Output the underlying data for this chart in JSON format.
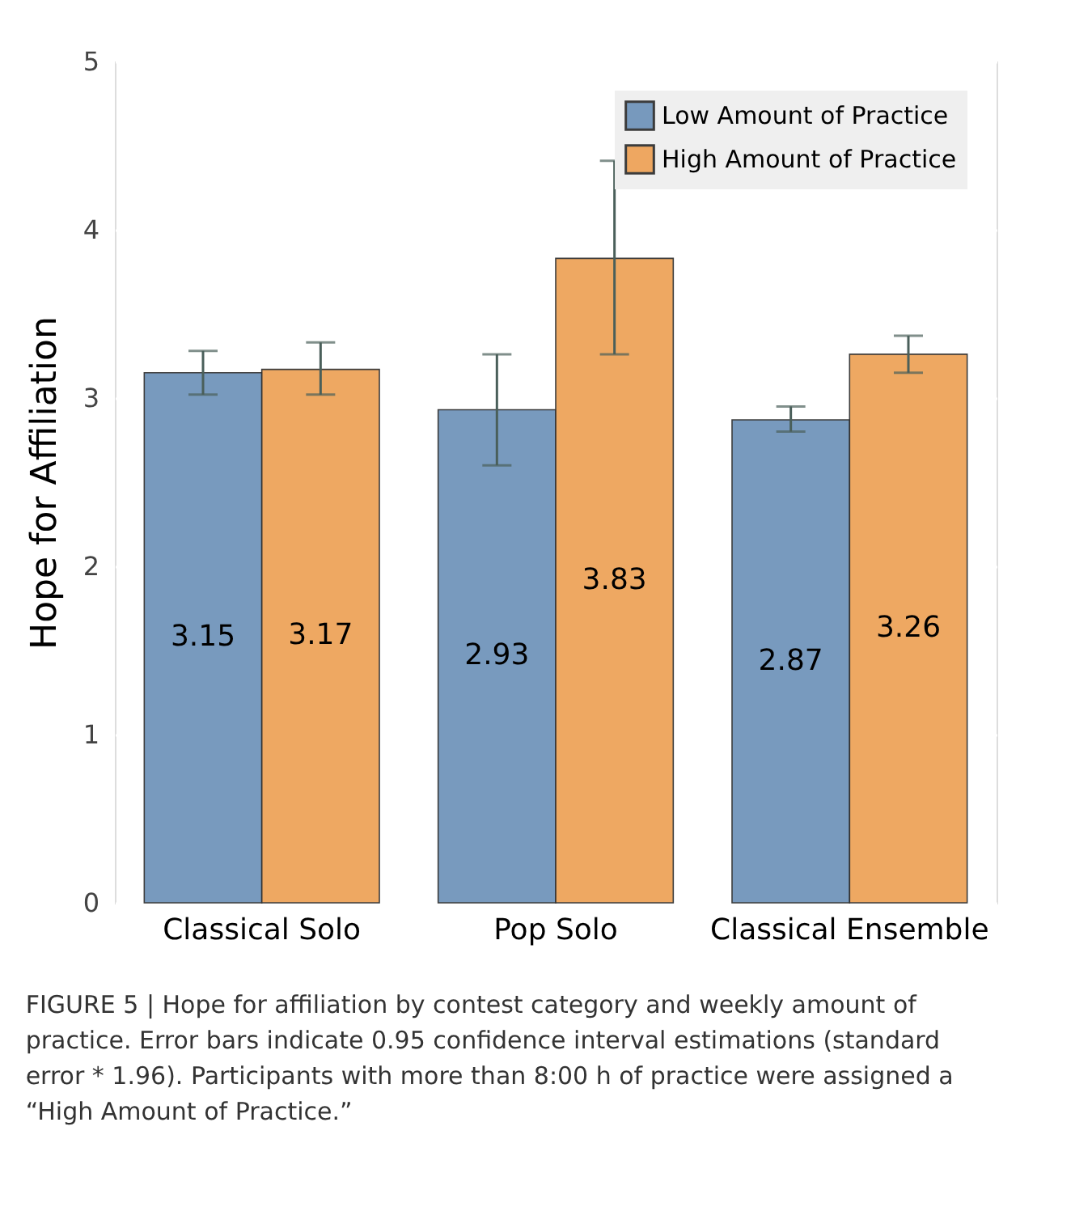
{
  "chart_data": {
    "type": "bar",
    "ylabel": "Hope for Affiliation",
    "categories": [
      "Classical Solo",
      "Pop Solo",
      "Classical Ensemble"
    ],
    "series": [
      {
        "name": "Low Amount of Practice",
        "color": "#7195bb",
        "values": [
          3.15,
          2.93,
          2.87
        ],
        "errors": [
          [
            3.02,
            3.28
          ],
          [
            2.6,
            3.26
          ],
          [
            2.8,
            2.95
          ]
        ]
      },
      {
        "name": "High Amount of Practice",
        "color": "#eea45a",
        "values": [
          3.17,
          3.83,
          3.26
        ],
        "errors": [
          [
            3.02,
            3.33
          ],
          [
            3.26,
            4.41
          ],
          [
            3.15,
            3.37
          ]
        ]
      }
    ],
    "ylim": [
      0,
      5
    ],
    "yticks": [
      0,
      1,
      2,
      3,
      4,
      5
    ],
    "grid": true,
    "legend": "top right",
    "data_labels": true,
    "annotations": [
      "FIGURE 5 | Hope for affiliation by contest category and weekly amount of practice. Error bars indicate 0.95 confidence interval estimations (standard error * 1.96). Participants with more than 8:00 h of practice were assigned a “High Amount of Practice.”"
    ]
  }
}
